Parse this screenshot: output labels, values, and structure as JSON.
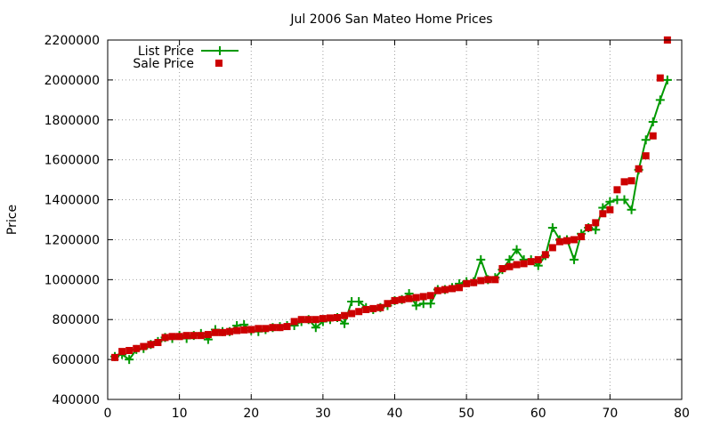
{
  "chart_data": {
    "type": "line",
    "title": "Jul 2006 San Mateo Home Prices",
    "xlabel": "",
    "ylabel": "Price",
    "xlim": [
      0,
      80
    ],
    "ylim": [
      400000,
      2200000
    ],
    "xticks": [
      "0",
      "10",
      "20",
      "30",
      "40",
      "50",
      "60",
      "70",
      "80"
    ],
    "yticks": [
      "400000",
      "600000",
      "800000",
      "1000000",
      "1200000",
      "1400000",
      "1600000",
      "1800000",
      "2000000",
      "2200000"
    ],
    "grid": true,
    "legend": "top-left",
    "series": [
      {
        "name": "List Price",
        "style": "line-with-plus-markers",
        "color": "#009900",
        "x": [
          1,
          2,
          3,
          4,
          5,
          6,
          7,
          8,
          9,
          10,
          11,
          12,
          13,
          14,
          15,
          16,
          17,
          18,
          19,
          20,
          21,
          22,
          23,
          24,
          25,
          26,
          27,
          28,
          29,
          30,
          31,
          32,
          33,
          34,
          35,
          36,
          37,
          38,
          39,
          40,
          41,
          42,
          43,
          44,
          45,
          46,
          47,
          48,
          49,
          50,
          51,
          52,
          53,
          54,
          55,
          56,
          57,
          58,
          59,
          60,
          61,
          62,
          63,
          64,
          65,
          66,
          67,
          68,
          69,
          70,
          71,
          72,
          73,
          74,
          75,
          76,
          77,
          78
        ],
        "values": [
          615000,
          625000,
          600000,
          650000,
          655000,
          675000,
          690000,
          710000,
          705000,
          720000,
          705000,
          720000,
          730000,
          700000,
          750000,
          740000,
          740000,
          770000,
          775000,
          745000,
          740000,
          750000,
          760000,
          765000,
          770000,
          770000,
          790000,
          800000,
          760000,
          790000,
          800000,
          810000,
          780000,
          890000,
          890000,
          860000,
          850000,
          860000,
          870000,
          895000,
          900000,
          930000,
          870000,
          880000,
          880000,
          950000,
          950000,
          960000,
          980000,
          990000,
          990000,
          1100000,
          1000000,
          1010000,
          1050000,
          1100000,
          1150000,
          1100000,
          1100000,
          1070000,
          1120000,
          1260000,
          1200000,
          1200000,
          1100000,
          1230000,
          1260000,
          1250000,
          1360000,
          1390000,
          1400000,
          1400000,
          1350000,
          1550000,
          1700000,
          1790000,
          1900000,
          2000000
        ]
      },
      {
        "name": "Sale Price",
        "style": "square-markers",
        "color": "#cc0000",
        "x": [
          1,
          2,
          3,
          4,
          5,
          6,
          7,
          8,
          9,
          10,
          11,
          12,
          13,
          14,
          15,
          16,
          17,
          18,
          19,
          20,
          21,
          22,
          23,
          24,
          25,
          26,
          27,
          28,
          29,
          30,
          31,
          32,
          33,
          34,
          35,
          36,
          37,
          38,
          39,
          40,
          41,
          42,
          43,
          44,
          45,
          46,
          47,
          48,
          49,
          50,
          51,
          52,
          53,
          54,
          55,
          56,
          57,
          58,
          59,
          60,
          61,
          62,
          63,
          64,
          65,
          66,
          67,
          68,
          69,
          70,
          71,
          72,
          73,
          74,
          75,
          76,
          77,
          78
        ],
        "values": [
          610000,
          640000,
          645000,
          655000,
          665000,
          675000,
          685000,
          710000,
          715000,
          715000,
          720000,
          720000,
          720000,
          725000,
          735000,
          735000,
          740000,
          745000,
          748000,
          750000,
          755000,
          755000,
          760000,
          760000,
          765000,
          790000,
          800000,
          800000,
          800000,
          805000,
          808000,
          810000,
          820000,
          830000,
          840000,
          850000,
          855000,
          860000,
          880000,
          895000,
          900000,
          905000,
          910000,
          915000,
          920000,
          945000,
          950000,
          955000,
          960000,
          980000,
          985000,
          995000,
          1000000,
          1000000,
          1055000,
          1065000,
          1075000,
          1080000,
          1090000,
          1100000,
          1125000,
          1160000,
          1190000,
          1195000,
          1200000,
          1215000,
          1260000,
          1285000,
          1330000,
          1350000,
          1450000,
          1490000,
          1495000,
          1555000,
          1620000,
          1720000,
          2010000,
          2200000
        ]
      }
    ]
  }
}
